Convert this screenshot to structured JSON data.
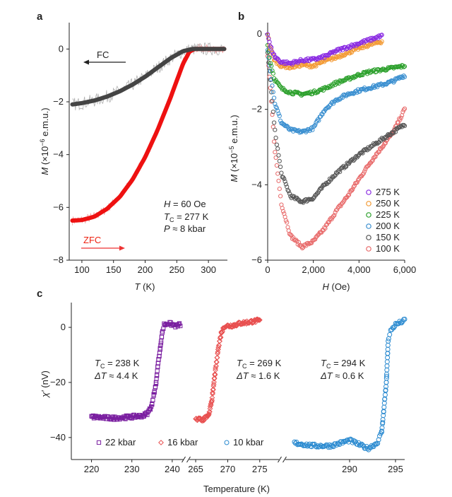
{
  "panels": {
    "a": {
      "letter": "a",
      "xlabel_var": "T",
      "xlabel_unit": " (K)",
      "ylabel_var": "M",
      "ylabel_unit": " (×10",
      "ylabel_exp": "−6",
      "ylabel_tail": " e.m.u.)",
      "fc_label": "FC",
      "zfc_label": "ZFC",
      "annotation": {
        "h_var": "H",
        "h_val": " = 60 Oe",
        "tc_var": "T",
        "tc_sub": "C",
        "tc_val": " = 277 K",
        "p_var": "P",
        "p_val": " ≈ 8 kbar"
      }
    },
    "b": {
      "letter": "b",
      "xlabel_var": "H",
      "xlabel_unit": " (Oe)",
      "ylabel_var": "M",
      "ylabel_unit": " (×10",
      "ylabel_exp": "−5",
      "ylabel_tail": " e.m.u.)"
    },
    "c": {
      "letter": "c",
      "xlabel": "Temperature (K)",
      "ylabel_var": "χ′",
      "ylabel_unit": " (nV)",
      "annotations": [
        {
          "tc_var": "T",
          "tc_sub": "C",
          "tc_val": " = 238 K",
          "dt_var": "ΔT",
          "dt_val": " ≈ 4.4 K"
        },
        {
          "tc_var": "T",
          "tc_sub": "C",
          "tc_val": " = 269 K",
          "dt_var": "ΔT",
          "dt_val": " ≈ 1.6 K"
        },
        {
          "tc_var": "T",
          "tc_sub": "C",
          "tc_val": " = 294 K",
          "dt_var": "ΔT",
          "dt_val": " ≈ 0.6 K"
        }
      ],
      "legend": [
        "22 kbar",
        "16 kbar",
        "10 kbar"
      ]
    }
  },
  "colors": {
    "fc": "#444444",
    "zfc": "#ee1111",
    "raw": "#b0b0b0",
    "raw_zfc": "#f2a0a0",
    "k275": "#8a2be2",
    "k250": "#f39a34",
    "k225": "#2ca02c",
    "k200": "#3a8fd0",
    "k150": "#555555",
    "k100": "#e86a6a",
    "p22": "#7a1fa0",
    "p16": "#e85050",
    "p10": "#2a8ad0"
  },
  "chart_data": [
    {
      "panel": "a",
      "type": "line",
      "xlabel": "T (K)",
      "ylabel": "M (×10−6 e.m.u.)",
      "xlim": [
        80,
        330
      ],
      "ylim": [
        -8,
        1
      ],
      "xticks": [
        100,
        150,
        200,
        250,
        300
      ],
      "yticks": [
        -8,
        -6,
        -4,
        -2,
        0
      ],
      "series": [
        {
          "name": "FC",
          "x": [
            85,
            100,
            120,
            140,
            160,
            180,
            200,
            220,
            240,
            260,
            275,
            290,
            310,
            325
          ],
          "y": [
            -2.1,
            -2.05,
            -1.95,
            -1.8,
            -1.6,
            -1.35,
            -1.05,
            -0.7,
            -0.35,
            -0.08,
            0,
            0,
            0,
            0
          ]
        },
        {
          "name": "ZFC",
          "x": [
            85,
            100,
            120,
            140,
            160,
            180,
            200,
            220,
            240,
            250,
            260,
            270,
            278,
            290,
            310,
            325
          ],
          "y": [
            -6.5,
            -6.48,
            -6.35,
            -6.05,
            -5.6,
            -4.95,
            -4.1,
            -3.05,
            -1.85,
            -1.2,
            -0.55,
            -0.1,
            0,
            0,
            0,
            0
          ]
        }
      ]
    },
    {
      "panel": "b",
      "type": "scatter",
      "xlabel": "H (Oe)",
      "ylabel": "M (×10−5 e.m.u.)",
      "xlim": [
        0,
        6000
      ],
      "ylim": [
        -6,
        0.3
      ],
      "xticks": [
        0,
        2000,
        4000,
        6000
      ],
      "xticklabels": [
        "0",
        "2,000",
        "4,000",
        "6,000"
      ],
      "yticks": [
        -6,
        -4,
        -2,
        0
      ],
      "series": [
        {
          "name": "275 K",
          "x": [
            0,
            100,
            300,
            600,
            1000,
            1500,
            2000,
            2500,
            3000,
            3500,
            4000,
            4500,
            5000
          ],
          "y": [
            0,
            -0.3,
            -0.6,
            -0.75,
            -0.78,
            -0.7,
            -0.68,
            -0.6,
            -0.45,
            -0.35,
            -0.25,
            -0.15,
            -0.05
          ]
        },
        {
          "name": "250 K",
          "x": [
            0,
            100,
            300,
            600,
            1000,
            1500,
            2000,
            2500,
            3000,
            3500,
            4000,
            4500,
            5000
          ],
          "y": [
            0,
            -0.35,
            -0.7,
            -0.85,
            -0.88,
            -0.82,
            -0.85,
            -0.72,
            -0.62,
            -0.5,
            -0.38,
            -0.28,
            -0.2
          ]
        },
        {
          "name": "225 K",
          "x": [
            0,
            100,
            300,
            600,
            1000,
            1500,
            2000,
            2500,
            3000,
            3500,
            4000,
            4500,
            5000,
            5500,
            6000
          ],
          "y": [
            -0.3,
            -0.7,
            -1.2,
            -1.45,
            -1.55,
            -1.6,
            -1.55,
            -1.45,
            -1.3,
            -1.2,
            -1.08,
            -1.0,
            -0.95,
            -0.9,
            -0.85
          ]
        },
        {
          "name": "200 K",
          "x": [
            0,
            100,
            300,
            600,
            1000,
            1500,
            2000,
            2500,
            3000,
            3500,
            4000,
            4500,
            5000,
            5500,
            6000
          ],
          "y": [
            -0.4,
            -0.9,
            -1.8,
            -2.35,
            -2.55,
            -2.6,
            -2.5,
            -2.0,
            -1.75,
            -1.6,
            -1.5,
            -1.42,
            -1.35,
            -1.25,
            -1.1
          ]
        },
        {
          "name": "150 K",
          "x": [
            0,
            100,
            300,
            600,
            1000,
            1500,
            2000,
            2500,
            3000,
            3500,
            4000,
            4500,
            5000,
            5500,
            6000
          ],
          "y": [
            -0.5,
            -1.1,
            -2.5,
            -3.7,
            -4.3,
            -4.45,
            -4.35,
            -4.0,
            -3.7,
            -3.45,
            -3.2,
            -3.0,
            -2.8,
            -2.6,
            -2.4
          ]
        },
        {
          "name": "100 K",
          "x": [
            0,
            100,
            300,
            600,
            1000,
            1500,
            2000,
            2500,
            3000,
            3500,
            4000,
            4500,
            5000,
            5500,
            6000
          ],
          "y": [
            -0.6,
            -1.3,
            -3.0,
            -4.5,
            -5.35,
            -5.65,
            -5.5,
            -5.15,
            -4.7,
            -4.3,
            -3.85,
            -3.4,
            -3.0,
            -2.6,
            -2.0
          ]
        }
      ]
    },
    {
      "panel": "c",
      "type": "scatter",
      "xlabel": "Temperature (K)",
      "ylabel": "χ′ (nV)",
      "ylim": [
        -48,
        9
      ],
      "yticks": [
        -40,
        -20,
        0
      ],
      "segments": [
        {
          "xlim": [
            215,
            243
          ],
          "xticks": [
            220,
            230,
            240
          ]
        },
        {
          "xlim": [
            264,
            278
          ],
          "xticks": [
            265,
            270,
            275
          ]
        },
        {
          "xlim": [
            283,
            296
          ],
          "xticks": [
            290,
            295
          ]
        }
      ],
      "series": [
        {
          "name": "22 kbar",
          "x": [
            220,
            225,
            230,
            233,
            234,
            235,
            236,
            236.5,
            237,
            237.5,
            238,
            239,
            240,
            241,
            242
          ],
          "y": [
            -32.5,
            -33,
            -32.5,
            -32,
            -31,
            -28,
            -20,
            -13,
            -8,
            -2,
            1,
            1.5,
            1,
            0.5,
            1
          ]
        },
        {
          "name": "16 kbar",
          "x": [
            265,
            266,
            266.5,
            267,
            267.5,
            268,
            268.5,
            269,
            269.5,
            270,
            271,
            272,
            273,
            274,
            275
          ],
          "y": [
            -33.5,
            -33.5,
            -33,
            -32,
            -27,
            -17,
            -8,
            -2,
            0.5,
            0.5,
            0.8,
            1.5,
            1.8,
            2.2,
            2.5
          ]
        },
        {
          "name": "10 kbar",
          "x": [
            284,
            286,
            288,
            289,
            290,
            291,
            292,
            293,
            293.5,
            294,
            294.2,
            294.5,
            295,
            296
          ],
          "y": [
            -42,
            -43,
            -43,
            -42,
            -41,
            -42.5,
            -44,
            -42,
            -38,
            -20,
            -5,
            -1,
            1,
            2.5
          ]
        }
      ]
    }
  ]
}
